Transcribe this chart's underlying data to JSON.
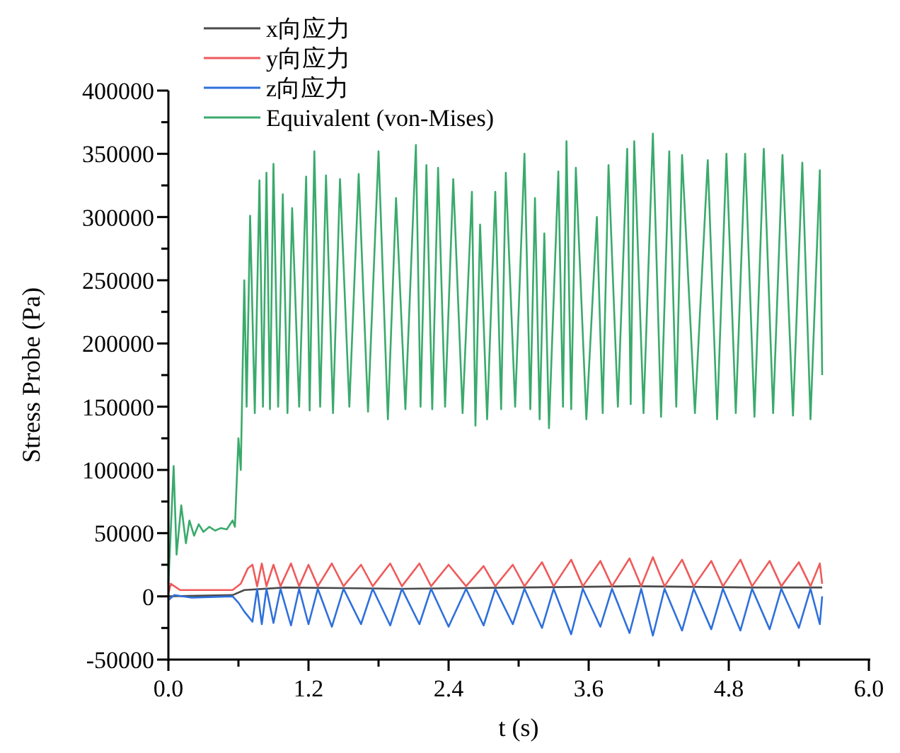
{
  "chart_data": {
    "type": "line",
    "xlabel": "t (s)",
    "ylabel": "Stress Probe (Pa)",
    "xlim": [
      0,
      6
    ],
    "ylim": [
      -50000,
      400000
    ],
    "xticks": [
      {
        "value": 0,
        "label": "0.0"
      },
      {
        "value": 0.6,
        "label": null
      },
      {
        "value": 1.2,
        "label": "1.2"
      },
      {
        "value": 1.8,
        "label": null
      },
      {
        "value": 2.4,
        "label": "2.4"
      },
      {
        "value": 3.0,
        "label": null
      },
      {
        "value": 3.6,
        "label": "3.6"
      },
      {
        "value": 4.2,
        "label": null
      },
      {
        "value": 4.8,
        "label": "4.8"
      },
      {
        "value": 5.4,
        "label": null
      },
      {
        "value": 6,
        "label": "6.0"
      }
    ],
    "yticks": [
      -50000,
      {
        "value": -25000,
        "label": null
      },
      0,
      {
        "value": 25000,
        "label": null
      },
      50000,
      {
        "value": 75000,
        "label": null
      },
      100000,
      {
        "value": 125000,
        "label": null
      },
      150000,
      {
        "value": 175000,
        "label": null
      },
      200000,
      {
        "value": 225000,
        "label": null
      },
      250000,
      {
        "value": 275000,
        "label": null
      },
      300000,
      {
        "value": 325000,
        "label": null
      },
      350000,
      {
        "value": 375000,
        "label": null
      },
      400000
    ],
    "grid": false,
    "legend": "top left",
    "marker": "none",
    "line_style": "solid",
    "series": [
      {
        "name": "x向应力",
        "color": "#4a4a4a",
        "x": [
          0,
          0.55,
          0.65,
          1.0,
          2.0,
          3.0,
          4.0,
          5.0,
          5.6
        ],
        "values": [
          0,
          1000,
          5000,
          7000,
          6000,
          7000,
          8000,
          7000,
          7000
        ]
      },
      {
        "name": "y向应力",
        "color": "#f05a5a",
        "x": [
          0,
          0.02,
          0.1,
          0.55,
          0.62,
          0.68,
          0.72,
          0.76,
          0.8,
          0.84,
          0.9,
          0.96,
          1.05,
          1.12,
          1.2,
          1.28,
          1.4,
          1.5,
          1.65,
          1.75,
          1.9,
          2.0,
          2.15,
          2.25,
          2.4,
          2.55,
          2.7,
          2.8,
          2.95,
          3.05,
          3.2,
          3.3,
          3.45,
          3.55,
          3.7,
          3.8,
          3.95,
          4.05,
          4.15,
          4.25,
          4.4,
          4.5,
          4.65,
          4.75,
          4.9,
          5.0,
          5.15,
          5.25,
          5.4,
          5.5,
          5.58,
          5.6
        ],
        "values": [
          2000,
          10000,
          5000,
          5000,
          10000,
          22000,
          25000,
          8000,
          26000,
          8000,
          25000,
          8000,
          26000,
          8000,
          25000,
          8000,
          26000,
          8000,
          25000,
          8000,
          26000,
          8000,
          26000,
          8000,
          25000,
          8000,
          24000,
          8000,
          25000,
          8000,
          27000,
          8000,
          29000,
          8000,
          28000,
          8000,
          30000,
          8000,
          31000,
          8000,
          29000,
          8000,
          28000,
          8000,
          29000,
          8000,
          28000,
          8000,
          27000,
          8000,
          26000,
          10000
        ]
      },
      {
        "name": "z向应力",
        "color": "#2f70dc",
        "x": [
          0,
          0.05,
          0.2,
          0.55,
          0.6,
          0.65,
          0.72,
          0.76,
          0.8,
          0.84,
          0.9,
          0.96,
          1.05,
          1.12,
          1.2,
          1.28,
          1.4,
          1.5,
          1.65,
          1.75,
          1.9,
          2.0,
          2.15,
          2.25,
          2.4,
          2.55,
          2.7,
          2.8,
          2.95,
          3.05,
          3.2,
          3.3,
          3.45,
          3.55,
          3.7,
          3.8,
          3.95,
          4.05,
          4.15,
          4.25,
          4.4,
          4.5,
          4.65,
          4.75,
          4.9,
          5.0,
          5.15,
          5.25,
          5.4,
          5.5,
          5.58,
          5.6
        ],
        "values": [
          -3000,
          1000,
          -1000,
          0,
          -5000,
          -12000,
          -20000,
          6000,
          -22000,
          6000,
          -21000,
          6000,
          -23000,
          6000,
          -22000,
          6000,
          -24000,
          6000,
          -22000,
          6000,
          -23000,
          6000,
          -22000,
          6000,
          -24000,
          6000,
          -23000,
          6000,
          -22000,
          6000,
          -25000,
          6000,
          -30000,
          6000,
          -24000,
          6000,
          -29000,
          6000,
          -31000,
          6000,
          -27000,
          6000,
          -26000,
          6000,
          -27000,
          6000,
          -26000,
          6000,
          -25000,
          6000,
          -22000,
          0
        ]
      },
      {
        "name": "Equivalent (von-Mises)",
        "color": "#3aaa6c",
        "x": [
          0,
          0.045,
          0.07,
          0.11,
          0.15,
          0.18,
          0.22,
          0.26,
          0.3,
          0.35,
          0.4,
          0.45,
          0.5,
          0.55,
          0.57,
          0.6,
          0.62,
          0.65,
          0.67,
          0.7,
          0.74,
          0.78,
          0.81,
          0.84,
          0.87,
          0.9,
          0.94,
          0.98,
          1.02,
          1.06,
          1.12,
          1.18,
          1.21,
          1.25,
          1.3,
          1.35,
          1.41,
          1.47,
          1.55,
          1.63,
          1.71,
          1.8,
          1.88,
          1.95,
          2.03,
          2.12,
          2.16,
          2.21,
          2.26,
          2.31,
          2.37,
          2.44,
          2.52,
          2.6,
          2.63,
          2.67,
          2.73,
          2.8,
          2.85,
          2.89,
          2.97,
          3.05,
          3.1,
          3.14,
          3.18,
          3.22,
          3.26,
          3.34,
          3.38,
          3.41,
          3.45,
          3.49,
          3.58,
          3.67,
          3.72,
          3.77,
          3.85,
          3.93,
          3.96,
          3.99,
          4.07,
          4.15,
          4.22,
          4.29,
          4.35,
          4.4,
          4.51,
          4.62,
          4.7,
          4.78,
          4.86,
          4.94,
          5.02,
          5.1,
          5.18,
          5.26,
          5.35,
          5.43,
          5.5,
          5.58,
          5.6
        ],
        "values": [
          10000,
          103000,
          33000,
          72000,
          42000,
          60000,
          48000,
          57000,
          51000,
          55000,
          52000,
          54000,
          53000,
          60000,
          55000,
          125000,
          100000,
          250000,
          150000,
          301000,
          145000,
          329000,
          150000,
          335000,
          148000,
          342000,
          150000,
          318000,
          145000,
          307000,
          150000,
          332000,
          147000,
          352000,
          150000,
          333000,
          145000,
          330000,
          150000,
          334000,
          146000,
          352000,
          140000,
          315000,
          148000,
          357000,
          150000,
          341000,
          148000,
          339000,
          150000,
          330000,
          145000,
          320000,
          135000,
          294000,
          140000,
          320000,
          148000,
          335000,
          150000,
          350000,
          148000,
          315000,
          140000,
          287000,
          133000,
          336000,
          150000,
          360000,
          148000,
          339000,
          140000,
          300000,
          145000,
          341000,
          150000,
          354000,
          152000,
          360000,
          145000,
          366000,
          142000,
          352000,
          150000,
          349000,
          145000,
          345000,
          140000,
          350000,
          145000,
          350000,
          142000,
          354000,
          145000,
          349000,
          143000,
          343000,
          140000,
          337000,
          175000
        ]
      }
    ]
  }
}
